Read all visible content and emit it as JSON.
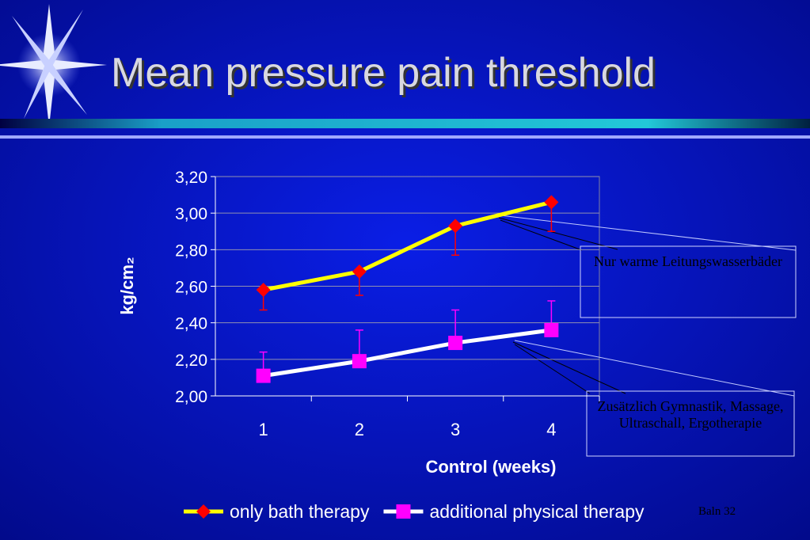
{
  "chart_data": {
    "type": "line",
    "title": "Mean pressure pain threshold",
    "x_label": "Control (weeks)",
    "y_label": "kg/cm₂",
    "categories": [
      "1",
      "2",
      "3",
      "4"
    ],
    "series": [
      {
        "name": "only bath therapy",
        "color": "#ffff00",
        "marker_color": "#ff0000",
        "marker": "diamond",
        "values": [
          2.58,
          2.68,
          2.93,
          3.06
        ],
        "errors": [
          0.11,
          0.13,
          0.16,
          0.16
        ],
        "error_direction": "minus"
      },
      {
        "name": "additional physical therapy",
        "color": "#ffffff",
        "marker_color": "#ff00ff",
        "marker": "square",
        "values": [
          2.11,
          2.19,
          2.29,
          2.36
        ],
        "errors": [
          0.13,
          0.17,
          0.18,
          0.16
        ],
        "error_direction": "plus"
      }
    ],
    "ylim": [
      2.0,
      3.2
    ],
    "yticks": [
      {
        "value": 2.0,
        "label": "2,00"
      },
      {
        "value": 2.2,
        "label": "2,20"
      },
      {
        "value": 2.4,
        "label": "2,40"
      },
      {
        "value": 2.6,
        "label": "2,60"
      },
      {
        "value": 2.8,
        "label": "2,80"
      },
      {
        "value": 3.0,
        "label": "3,00"
      },
      {
        "value": 3.2,
        "label": "3,20"
      }
    ],
    "grid": true,
    "legend": "bottom",
    "annotations": [
      "Nur warme Leitungswasserbäder",
      "Zusätzlich Gymnastik, Massage, Ultraschall, Ergotherapie"
    ],
    "footer": "Baln 32"
  }
}
